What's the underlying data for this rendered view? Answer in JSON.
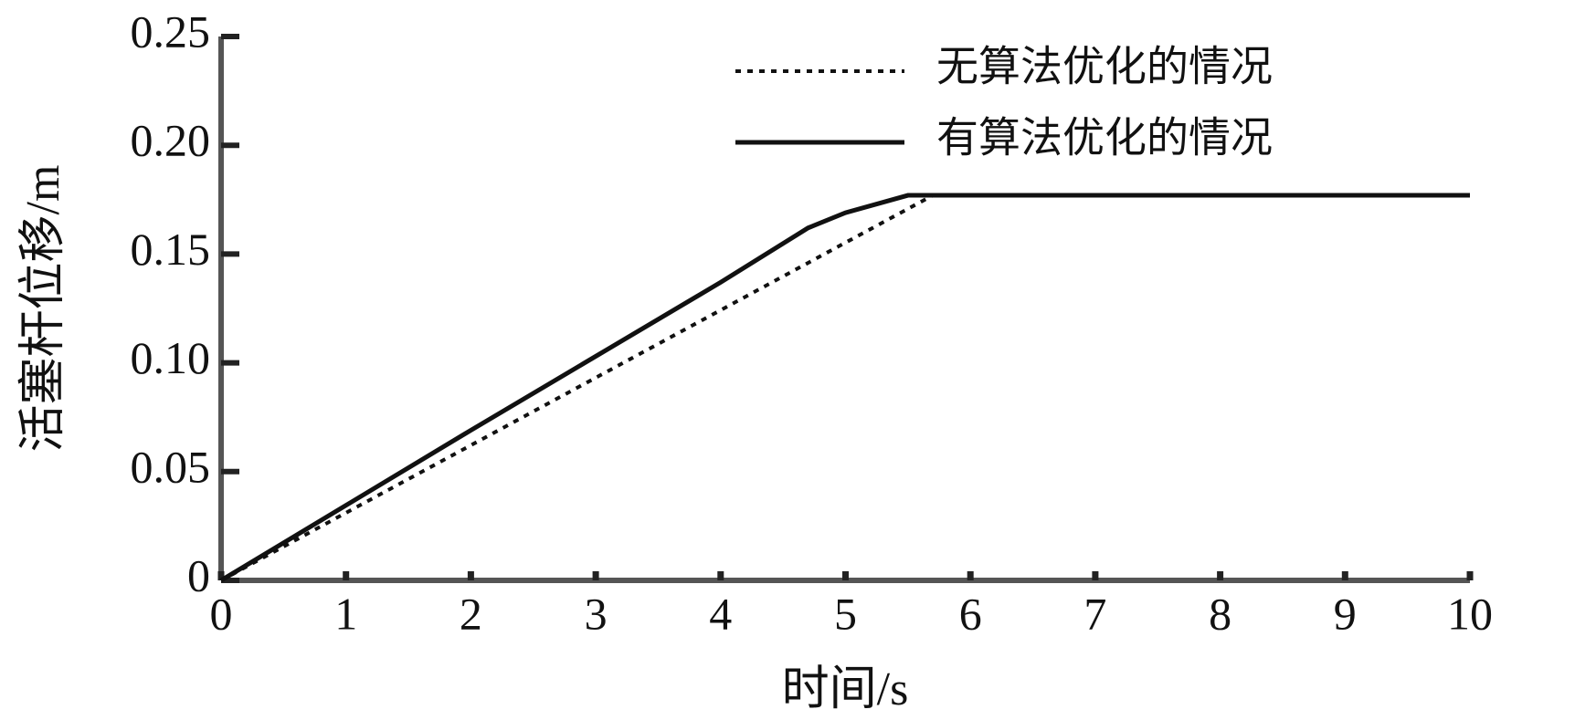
{
  "chart_data": {
    "type": "line",
    "xlabel": "时间/s",
    "ylabel": "活塞杆位移/m",
    "xlim": [
      0,
      10
    ],
    "xticks": [
      0,
      1,
      2,
      3,
      4,
      5,
      6,
      7,
      8,
      9,
      10
    ],
    "ylim": [
      0,
      0.25
    ],
    "yticks": [
      0,
      0.05,
      {
        "value": 0.1,
        "label": "0.10"
      },
      0.15,
      {
        "value": 0.2,
        "label": "0.20"
      },
      0.25
    ],
    "grid": false,
    "legend": "upper right",
    "series": [
      {
        "name": "无算法优化的情况",
        "color": "#111111",
        "style": "dotted",
        "x": [
          0,
          5.7
        ],
        "values": [
          0,
          0.177
        ]
      },
      {
        "name": "有算法优化的情况",
        "color": "#111111",
        "style": "solid",
        "x": [
          0,
          1,
          2,
          3,
          4,
          4.7,
          5,
          5.5,
          10
        ],
        "values": [
          0,
          0.0345,
          0.069,
          0.103,
          0.137,
          0.162,
          0.169,
          0.177,
          0.177
        ]
      }
    ]
  }
}
